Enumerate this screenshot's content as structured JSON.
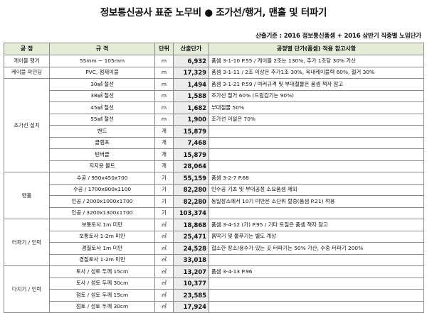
{
  "title": "정보통신공사 표준 노무비 ● 조가선/행거, 맨홀 및 터파기",
  "basis": "산출기준 : 2016 정보통신품셈 + 2016 상반기 직종별 노임단가",
  "headers": [
    "공 정",
    "규 격",
    "단위",
    "산출단가",
    "공정별 단가(품셈) 적용 참고사항"
  ],
  "groups": [
    {
      "category": "케이블 행거",
      "rows": [
        {
          "spec": "55mm ~ 105mm",
          "unit": "m",
          "price": "6,932",
          "note": "품셈 3-1-10 P.55 / 케이블 2조는 130%, 추가 1조당 30% 가산"
        }
      ]
    },
    {
      "category": "케이블 마인딩",
      "rows": [
        {
          "spec": "PVC, 점제이블",
          "unit": "m",
          "price": "17,329",
          "note": "품셈 3-1-11 / 2조 이상은 추가1조 30%, 옥내케이블력 60%, 철거 30%"
        }
      ]
    },
    {
      "category": "조가선 설치",
      "rows": [
        {
          "spec": "30㎟ 철선",
          "unit": "m",
          "price": "1,494",
          "note": "품셈 3-1-21 P.59 / 여러규격 및 부대철물은 품셈 책자 참고"
        },
        {
          "spec": "38㎟ 철선",
          "unit": "m",
          "price": "1,588",
          "note": "조가선 철거 60% (드럼감기는 90%)"
        },
        {
          "spec": "45㎟ 철선",
          "unit": "m",
          "price": "1,682",
          "note": "부대철물 50%"
        },
        {
          "spec": "55㎟ 철선",
          "unit": "m",
          "price": "1,900",
          "note": "조가선 이설은 70%"
        },
        {
          "spec": "밴드",
          "unit": "개",
          "price": "15,879",
          "note": ""
        },
        {
          "spec": "클램프",
          "unit": "개",
          "price": "7,468",
          "note": ""
        },
        {
          "spec": "턴버클",
          "unit": "개",
          "price": "15,879",
          "note": ""
        },
        {
          "spec": "지지용 볼트",
          "unit": "개",
          "price": "28,064",
          "note": ""
        }
      ]
    },
    {
      "category": "맨홀",
      "rows": [
        {
          "spec": "수공 / 950x450x700",
          "unit": "기",
          "price": "55,159",
          "note": "품셈 3-2-7 P.68"
        },
        {
          "spec": "수공 / 1700x800x1100",
          "unit": "기",
          "price": "82,280",
          "note": "인수공 기초 및 부대공정 소요품셈 제외"
        },
        {
          "spec": "인공 / 2000x1000x1700",
          "unit": "기",
          "price": "82,280",
          "note": "동일장소에서 10기 미만은 소단위 할증(품셈 P.21) 적용"
        },
        {
          "spec": "인공 / 3200x1300x1700",
          "unit": "기",
          "price": "103,374",
          "note": ""
        }
      ]
    },
    {
      "category": "터파기 / 인력",
      "rows": [
        {
          "spec": "보통토사 1m 미만",
          "unit": "㎥",
          "price": "18,868",
          "note": "품셈 3-4-12 (가) P.95 / 기타 토질은 품셈 책자 참고"
        },
        {
          "spec": "보통토사 1-2m 미만",
          "unit": "㎥",
          "price": "25,471",
          "note": "흙막기 및 물푸기는 별도 계상"
        },
        {
          "spec": "경질토사 1m 미만",
          "unit": "㎥",
          "price": "24,528",
          "note": "협소한 장소/용수가 있는 곳 터파기는 50% 가산, 수중 터파기 200%"
        },
        {
          "spec": "경질토사 1-2m 미만",
          "unit": "㎥",
          "price": "33,018",
          "note": ""
        }
      ]
    },
    {
      "category": "다지기 / 인력",
      "rows": [
        {
          "spec": "토사 / 성토 두께 15cm",
          "unit": "㎥",
          "price": "13,207",
          "note": "품셈 3-4-13 P.96"
        },
        {
          "spec": "토사 / 성토 두께 30cm",
          "unit": "㎥",
          "price": "10,377",
          "note": ""
        },
        {
          "spec": "점토 / 성토 두께 15cm",
          "unit": "㎥",
          "price": "23,585",
          "note": ""
        },
        {
          "spec": "점토 / 성토 두께 30cm",
          "unit": "㎥",
          "price": "17,924",
          "note": ""
        }
      ]
    }
  ]
}
